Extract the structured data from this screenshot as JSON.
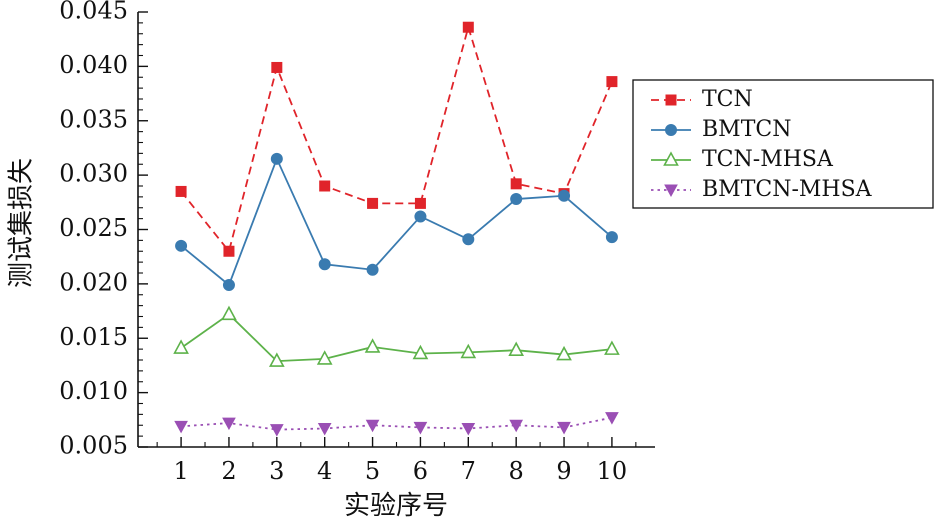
{
  "chart_data": {
    "type": "line",
    "title": "",
    "xlabel": "实验序号",
    "ylabel": "测试集损失",
    "x": [
      1,
      2,
      3,
      4,
      5,
      6,
      7,
      8,
      9,
      10
    ],
    "xticks": [
      "1",
      "2",
      "3",
      "4",
      "5",
      "6",
      "7",
      "8",
      "9",
      "10"
    ],
    "xlim": [
      0.1,
      10.9
    ],
    "ylim": [
      0.005,
      0.045
    ],
    "yticks": [
      "0.005",
      "0.010",
      "0.015",
      "0.020",
      "0.025",
      "0.030",
      "0.035",
      "0.040",
      "0.045"
    ],
    "ytick_values": [
      0.005,
      0.01,
      0.015,
      0.02,
      0.025,
      0.03,
      0.035,
      0.04,
      0.045
    ],
    "grid": false,
    "legend_position": "top-right",
    "series": [
      {
        "name": "TCN",
        "color": "#e0242a",
        "marker": "square",
        "dash": "dashed",
        "values": [
          0.0285,
          0.023,
          0.0399,
          0.029,
          0.0274,
          0.0274,
          0.0436,
          0.0292,
          0.0283,
          0.0386
        ]
      },
      {
        "name": "BMTCN",
        "color": "#3a7bb0",
        "marker": "circle",
        "dash": "solid",
        "values": [
          0.0235,
          0.0199,
          0.0315,
          0.0218,
          0.0213,
          0.0262,
          0.0241,
          0.0278,
          0.0281,
          0.0243
        ]
      },
      {
        "name": "TCN-MHSA",
        "color": "#5db24a",
        "marker": "triangle-up-open",
        "dash": "solid",
        "values": [
          0.0141,
          0.0172,
          0.0129,
          0.0131,
          0.0142,
          0.0136,
          0.0137,
          0.0139,
          0.0135,
          0.014
        ]
      },
      {
        "name": "BMTCN-MHSA",
        "color": "#9a4fb4",
        "marker": "triangle-down",
        "dash": "dotted",
        "values": [
          0.0069,
          0.0072,
          0.0066,
          0.0067,
          0.007,
          0.0068,
          0.0067,
          0.007,
          0.0068,
          0.0077
        ]
      }
    ]
  }
}
